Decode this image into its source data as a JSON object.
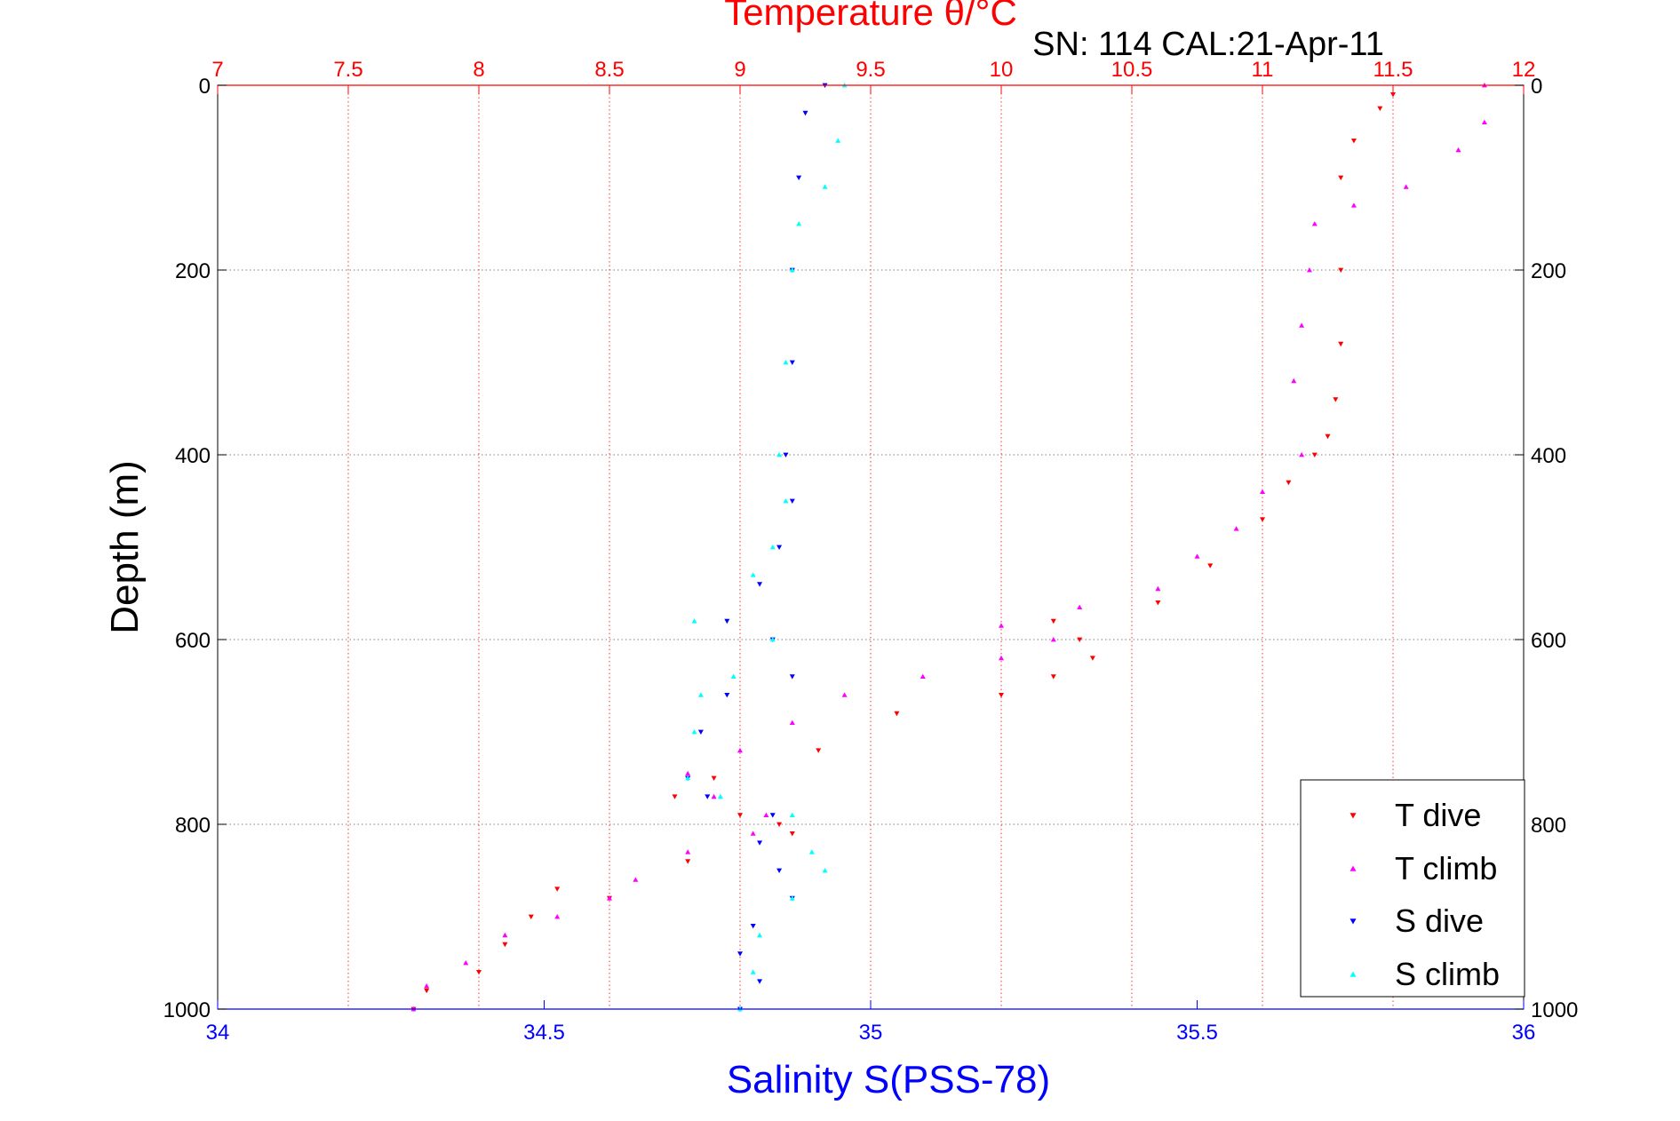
{
  "chart_data": {
    "type": "scatter",
    "title": "Temperature θ/°C",
    "subtitle": "SN: 114  CAL:21-Apr-11",
    "ylabel": "Depth (m)",
    "xlabel_bottom": "Salinity S(PSS-78)",
    "ylim": [
      0,
      1000
    ],
    "y_inverted": true,
    "x_top": {
      "label": "Temperature θ/°C",
      "range": [
        7,
        12
      ],
      "ticks": [
        7,
        7.5,
        8,
        8.5,
        9,
        9.5,
        10,
        10.5,
        11,
        11.5,
        12
      ],
      "tick_labels": [
        "7",
        "7.5",
        "8",
        "8.5",
        "9",
        "9.5",
        "10",
        "10.5",
        "11",
        "11.5",
        "12"
      ],
      "grid": true
    },
    "x_bottom": {
      "label": "Salinity S(PSS-78)",
      "range": [
        34,
        36
      ],
      "ticks": [
        34,
        34.5,
        35,
        35.5,
        36
      ],
      "tick_labels": [
        "34",
        "34.5",
        "35",
        "35.5",
        "36"
      ]
    },
    "y_ticks": [
      0,
      200,
      400,
      600,
      800,
      1000
    ],
    "y_tick_labels": [
      "0",
      "200",
      "400",
      "600",
      "800",
      "1000"
    ],
    "grid": true,
    "legend_position": "bottom-right",
    "colors": {
      "temperature_axis": "#ff0000",
      "salinity_axis": "#0000ff",
      "grid": "#555555"
    },
    "series": [
      {
        "name": "T dive",
        "axis": "top",
        "marker": "triangle-down",
        "color": "#ff0000",
        "points": [
          [
            11.5,
            10
          ],
          [
            11.45,
            25
          ],
          [
            11.35,
            60
          ],
          [
            11.3,
            100
          ],
          [
            11.3,
            200
          ],
          [
            11.3,
            280
          ],
          [
            11.28,
            340
          ],
          [
            11.25,
            380
          ],
          [
            11.2,
            400
          ],
          [
            11.1,
            430
          ],
          [
            11.0,
            470
          ],
          [
            10.8,
            520
          ],
          [
            10.6,
            560
          ],
          [
            10.2,
            580
          ],
          [
            10.3,
            600
          ],
          [
            10.35,
            620
          ],
          [
            10.2,
            640
          ],
          [
            10.0,
            660
          ],
          [
            9.6,
            680
          ],
          [
            9.3,
            720
          ],
          [
            8.9,
            750
          ],
          [
            8.75,
            770
          ],
          [
            9.0,
            790
          ],
          [
            9.15,
            800
          ],
          [
            9.2,
            810
          ],
          [
            8.8,
            840
          ],
          [
            8.3,
            870
          ],
          [
            8.5,
            880
          ],
          [
            8.2,
            900
          ],
          [
            8.1,
            930
          ],
          [
            8.0,
            960
          ],
          [
            7.8,
            980
          ],
          [
            7.75,
            1000
          ]
        ]
      },
      {
        "name": "T climb",
        "axis": "top",
        "marker": "triangle-up",
        "color": "#ff00ff",
        "points": [
          [
            11.85,
            0
          ],
          [
            11.85,
            40
          ],
          [
            11.75,
            70
          ],
          [
            11.55,
            110
          ],
          [
            11.35,
            130
          ],
          [
            11.2,
            150
          ],
          [
            11.18,
            200
          ],
          [
            11.15,
            260
          ],
          [
            11.12,
            320
          ],
          [
            11.15,
            400
          ],
          [
            11.0,
            440
          ],
          [
            10.9,
            480
          ],
          [
            10.75,
            510
          ],
          [
            10.6,
            545
          ],
          [
            10.3,
            565
          ],
          [
            10.0,
            585
          ],
          [
            10.2,
            600
          ],
          [
            10.0,
            620
          ],
          [
            9.7,
            640
          ],
          [
            9.4,
            660
          ],
          [
            9.2,
            690
          ],
          [
            9.0,
            720
          ],
          [
            8.8,
            745
          ],
          [
            8.9,
            770
          ],
          [
            9.1,
            790
          ],
          [
            9.05,
            810
          ],
          [
            8.8,
            830
          ],
          [
            8.6,
            860
          ],
          [
            8.5,
            880
          ],
          [
            8.3,
            900
          ],
          [
            8.1,
            920
          ],
          [
            7.95,
            950
          ],
          [
            7.8,
            975
          ],
          [
            7.75,
            1000
          ]
        ]
      },
      {
        "name": "S dive",
        "axis": "bottom",
        "marker": "triangle-down",
        "color": "#0000ff",
        "points": [
          [
            34.93,
            0
          ],
          [
            34.9,
            30
          ],
          [
            34.89,
            100
          ],
          [
            34.88,
            200
          ],
          [
            34.88,
            300
          ],
          [
            34.87,
            400
          ],
          [
            34.88,
            450
          ],
          [
            34.86,
            500
          ],
          [
            34.83,
            540
          ],
          [
            34.78,
            580
          ],
          [
            34.85,
            600
          ],
          [
            34.88,
            640
          ],
          [
            34.78,
            660
          ],
          [
            34.74,
            700
          ],
          [
            34.72,
            750
          ],
          [
            34.75,
            770
          ],
          [
            34.85,
            790
          ],
          [
            34.83,
            820
          ],
          [
            34.86,
            850
          ],
          [
            34.88,
            880
          ],
          [
            34.82,
            910
          ],
          [
            34.8,
            940
          ],
          [
            34.83,
            970
          ],
          [
            34.8,
            1000
          ]
        ]
      },
      {
        "name": "S climb",
        "axis": "bottom",
        "marker": "triangle-up",
        "color": "#00ffff",
        "points": [
          [
            34.96,
            0
          ],
          [
            34.95,
            60
          ],
          [
            34.93,
            110
          ],
          [
            34.89,
            150
          ],
          [
            34.88,
            200
          ],
          [
            34.87,
            300
          ],
          [
            34.86,
            400
          ],
          [
            34.87,
            450
          ],
          [
            34.85,
            500
          ],
          [
            34.82,
            530
          ],
          [
            34.73,
            580
          ],
          [
            34.85,
            600
          ],
          [
            34.79,
            640
          ],
          [
            34.74,
            660
          ],
          [
            34.73,
            700
          ],
          [
            34.72,
            750
          ],
          [
            34.77,
            770
          ],
          [
            34.88,
            790
          ],
          [
            34.91,
            830
          ],
          [
            34.93,
            850
          ],
          [
            34.88,
            880
          ],
          [
            34.83,
            920
          ],
          [
            34.82,
            960
          ],
          [
            34.8,
            1000
          ]
        ]
      }
    ]
  }
}
